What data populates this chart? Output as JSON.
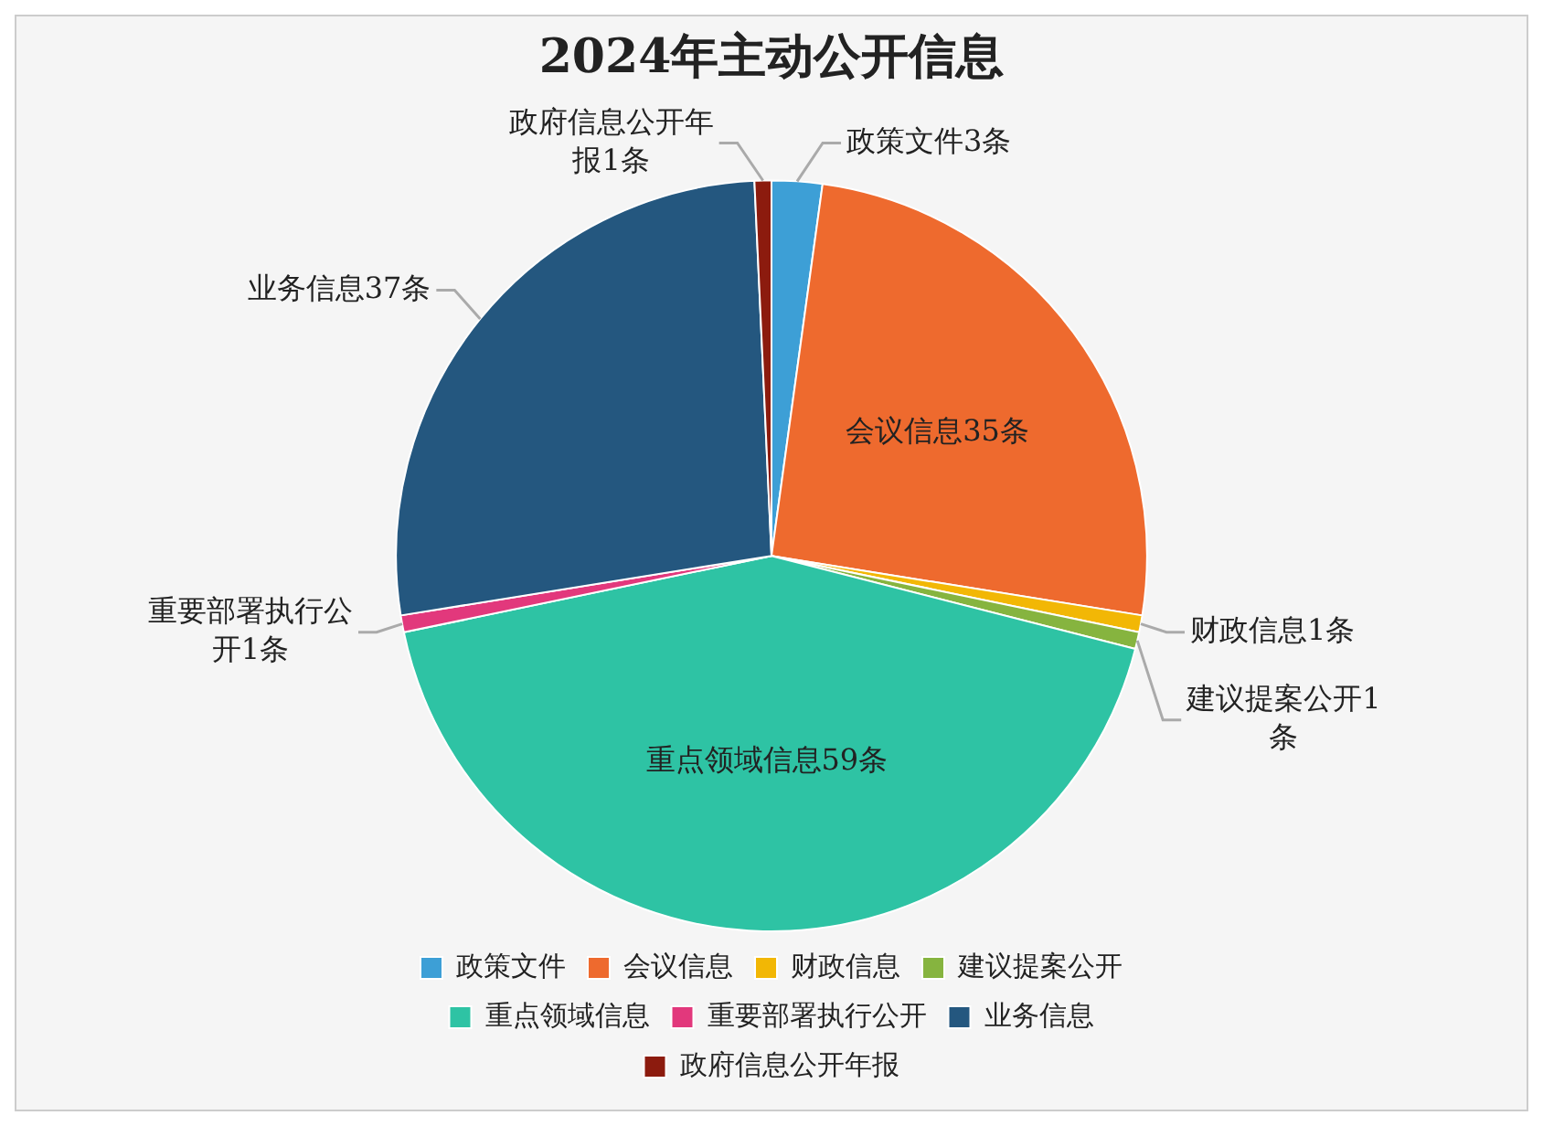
{
  "chart_data": {
    "type": "pie",
    "title": "2024年主动公开信息",
    "categories": [
      "政策文件",
      "会议信息",
      "财政信息",
      "建议提案公开",
      "重点领域信息",
      "重要部署执行公开",
      "业务信息",
      "政府信息公开年报"
    ],
    "values": [
      3,
      35,
      1,
      1,
      59,
      1,
      37,
      1
    ],
    "colors": [
      "#3d9fd6",
      "#ee6a2e",
      "#f2b705",
      "#86b43f",
      "#2ec3a4",
      "#e2387c",
      "#24577f",
      "#8c1b0e"
    ],
    "value_labels": [
      "政策文件3条",
      "会议信息35条",
      "财政信息1条",
      "建议提案公开1条",
      "重点领域信息59条",
      "重要部署执行公开1条",
      "业务信息37条",
      "政府信息公开年报1条"
    ],
    "legend": "bottom"
  }
}
